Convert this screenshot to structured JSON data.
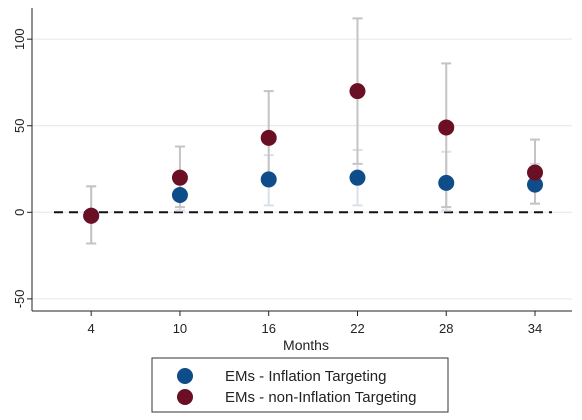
{
  "chart_data": {
    "type": "scatter",
    "title": "",
    "xlabel": "Months",
    "ylabel": "",
    "x": [
      4,
      10,
      16,
      22,
      28,
      34
    ],
    "x_tick_labels": [
      "4",
      "10",
      "16",
      "22",
      "28",
      "34"
    ],
    "xlim": [
      0,
      36.5
    ],
    "ylim": [
      -57,
      118
    ],
    "y_ticks": [
      -50,
      0,
      50,
      100
    ],
    "y_tick_labels": [
      "-50",
      "0",
      "50",
      "100"
    ],
    "grid": true,
    "reference_line": {
      "y": 0,
      "style": "dashed"
    },
    "legend": {
      "placement": "bottom",
      "entries": [
        "EMs - Inflation Targeting",
        "EMs - non-Inflation Targeting"
      ]
    },
    "series": [
      {
        "name": "EMs - Inflation Targeting",
        "color": "#0f4c8a",
        "ci_color": "#d9e0ea",
        "values": [
          -2,
          10,
          19,
          20,
          17,
          16
        ],
        "ci_low": [
          -18,
          1,
          4,
          4,
          1,
          5
        ],
        "ci_high": [
          15,
          18,
          33,
          36,
          35,
          28
        ]
      },
      {
        "name": "EMs - non-Inflation Targeting",
        "color": "#6b0f24",
        "ci_color": "#c4c4c4",
        "values": [
          -2,
          20,
          43,
          70,
          49,
          23
        ],
        "ci_low": [
          -18,
          3,
          17,
          28,
          3,
          5
        ],
        "ci_high": [
          15,
          38,
          70,
          112,
          86,
          42
        ]
      }
    ]
  }
}
